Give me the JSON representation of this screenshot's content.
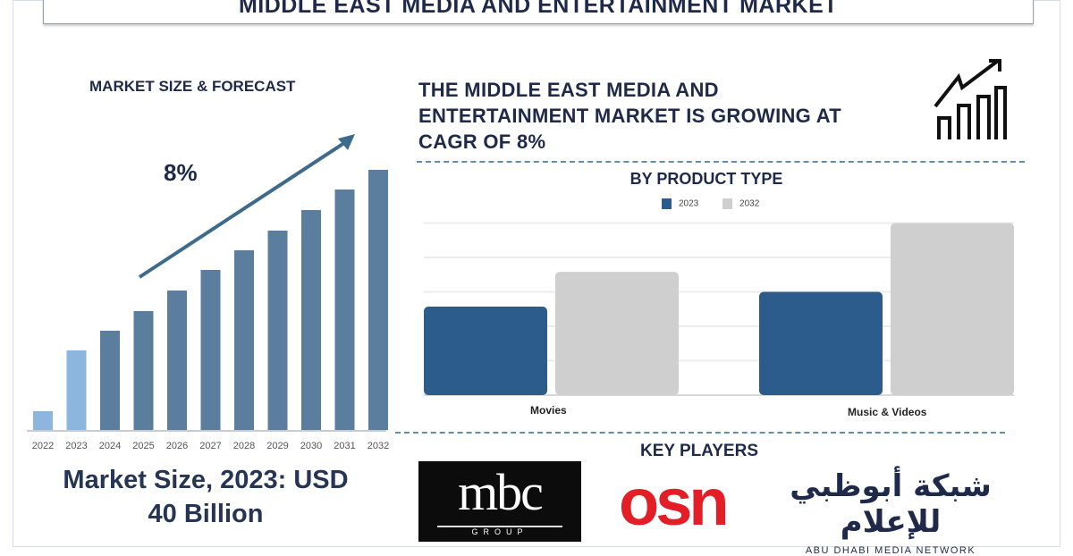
{
  "title": "MIDDLE EAST MEDIA AND ENTERTAINMENT MARKET",
  "left": {
    "heading": "MARKET SIZE & FORECAST",
    "cagr_label": "8%",
    "market_size_line1": "Market Size, 2023: USD",
    "market_size_line2": "40 Billion"
  },
  "headline": {
    "line1": "THE MIDDLE EAST MEDIA AND",
    "line2": "ENTERTAINMENT MARKET IS GROWING AT",
    "line3": "CAGR OF 8%",
    "icon": "growth-chart-icon"
  },
  "key_players": {
    "heading": "KEY PLAYERS",
    "logos": [
      "mbc GROUP",
      "osn",
      "شبكة أبوظبي للإعلام ABU DHABI MEDIA NETWORK"
    ]
  },
  "colors": {
    "navy": "#1f2a4a",
    "forecast_bar": "#5b7d9e",
    "historic_bar": "#8db6de",
    "series_2023": "#2b5c8b",
    "series_2032": "#cfcfcf",
    "logo_red": "#e31e26"
  },
  "chart_data": [
    {
      "type": "bar",
      "title": "MARKET SIZE & FORECAST",
      "categories": [
        "2022",
        "2023",
        "2024",
        "2025",
        "2026",
        "2027",
        "2028",
        "2029",
        "2030",
        "2031",
        "2032"
      ],
      "values": [
        21,
        89,
        111,
        133,
        156,
        179,
        201,
        223,
        246,
        269,
        291
      ],
      "annotation": "8%",
      "grid": false
    },
    {
      "type": "bar",
      "title": "BY PRODUCT TYPE",
      "categories": [
        "Movies",
        "Music & Videos"
      ],
      "series": [
        {
          "name": "2023",
          "values": [
            2.57,
            3.0
          ]
        },
        {
          "name": "2032",
          "values": [
            3.58,
            5.0
          ]
        }
      ],
      "ylim": [
        0,
        5
      ],
      "grid": true,
      "legend": "top"
    }
  ]
}
